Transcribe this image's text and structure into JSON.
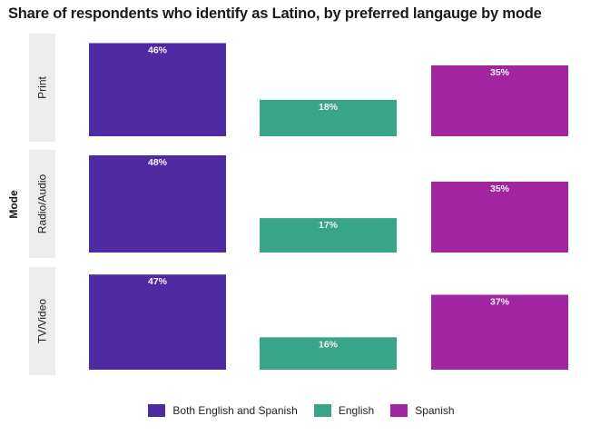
{
  "chart_data": {
    "type": "bar",
    "title": "Share of respondents who identify as Latino, by preferred langauge by mode",
    "facet_label": "Mode",
    "facets": [
      "Print",
      "Radio/Audio",
      "TV/Video"
    ],
    "categories": [
      "Both English and Spanish",
      "English",
      "Spanish"
    ],
    "values": [
      [
        46,
        18,
        35
      ],
      [
        48,
        17,
        35
      ],
      [
        47,
        16,
        37
      ]
    ],
    "value_labels": [
      [
        "46%",
        "18%",
        "35%"
      ],
      [
        "48%",
        "17%",
        "35%"
      ],
      [
        "47%",
        "16%",
        "37%"
      ]
    ],
    "colors": [
      "#4e2aa2",
      "#38a589",
      "#a125a0"
    ],
    "legend_position": "bottom",
    "grid": false
  }
}
